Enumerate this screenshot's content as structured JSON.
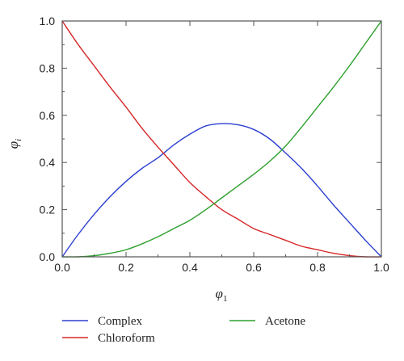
{
  "chart_data": {
    "type": "line",
    "xlabel": "φ",
    "xlabel_subscript": "1",
    "ylabel": "φ",
    "ylabel_subscript": "i",
    "xlim": [
      0,
      1
    ],
    "ylim": [
      0,
      1
    ],
    "grid": false,
    "legend_position": "bottom",
    "x_ticks": [
      "0.0",
      "0.2",
      "0.4",
      "0.6",
      "0.8",
      "1.0"
    ],
    "y_ticks": [
      "0.0",
      "0.2",
      "0.4",
      "0.6",
      "0.8",
      "1.0"
    ],
    "x": [
      0.0,
      0.05,
      0.1,
      0.15,
      0.2,
      0.25,
      0.3,
      0.35,
      0.4,
      0.45,
      0.5,
      0.55,
      0.6,
      0.65,
      0.7,
      0.75,
      0.8,
      0.85,
      0.9,
      0.95,
      1.0
    ],
    "series": [
      {
        "name": "Complex",
        "color": "#2b3fd1",
        "values": [
          0.0,
          0.095,
          0.18,
          0.255,
          0.32,
          0.375,
          0.42,
          0.475,
          0.52,
          0.555,
          0.565,
          0.56,
          0.54,
          0.5,
          0.44,
          0.375,
          0.3,
          0.22,
          0.145,
          0.07,
          0.0
        ]
      },
      {
        "name": "Chloroform",
        "color": "#d62728",
        "values": [
          1.0,
          0.9,
          0.81,
          0.72,
          0.635,
          0.545,
          0.465,
          0.39,
          0.315,
          0.255,
          0.2,
          0.16,
          0.12,
          0.095,
          0.07,
          0.045,
          0.03,
          0.015,
          0.005,
          0.0,
          0.0
        ]
      },
      {
        "name": "Acetone",
        "color": "#2ca02c",
        "values": [
          0.0,
          0.0,
          0.005,
          0.015,
          0.03,
          0.055,
          0.085,
          0.12,
          0.155,
          0.2,
          0.25,
          0.3,
          0.35,
          0.405,
          0.47,
          0.55,
          0.635,
          0.72,
          0.81,
          0.905,
          1.0
        ]
      }
    ]
  }
}
